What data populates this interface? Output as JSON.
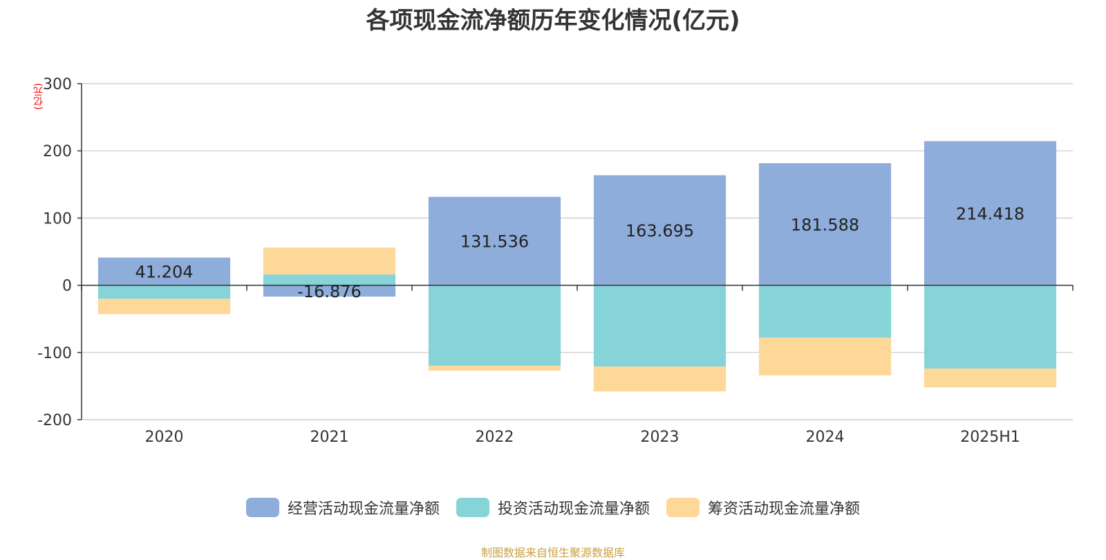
{
  "title": "各项现金流净额历年变化情况(亿元)",
  "unit_label": "(亿元)",
  "source": "制图数据来自恒生聚源数据库",
  "colors": {
    "operating": "#8eaddb",
    "investing": "#86d4d7",
    "financing": "#fdd898"
  },
  "chart_data": {
    "type": "bar",
    "stacked": true,
    "categories": [
      "2020",
      "2021",
      "2022",
      "2023",
      "2024",
      "2025H1"
    ],
    "series": [
      {
        "name": "经营活动现金流量净额",
        "color_key": "operating",
        "values": [
          41.204,
          -16.876,
          131.536,
          163.695,
          181.588,
          214.418
        ]
      },
      {
        "name": "投资活动现金流量净额",
        "color_key": "investing",
        "values": [
          -20,
          16,
          -120,
          -121,
          -78,
          -124
        ]
      },
      {
        "name": "筹资活动现金流量净额",
        "color_key": "financing",
        "values": [
          -23,
          40,
          -7,
          -37,
          -56,
          -28
        ]
      }
    ],
    "data_labels": [
      "41.204",
      "-16.876",
      "131.536",
      "163.695",
      "181.588",
      "214.418"
    ],
    "ylim": [
      -200,
      300
    ],
    "yticks": [
      -200,
      -100,
      0,
      100,
      200,
      300
    ],
    "grid": true,
    "legend_position": "bottom"
  }
}
